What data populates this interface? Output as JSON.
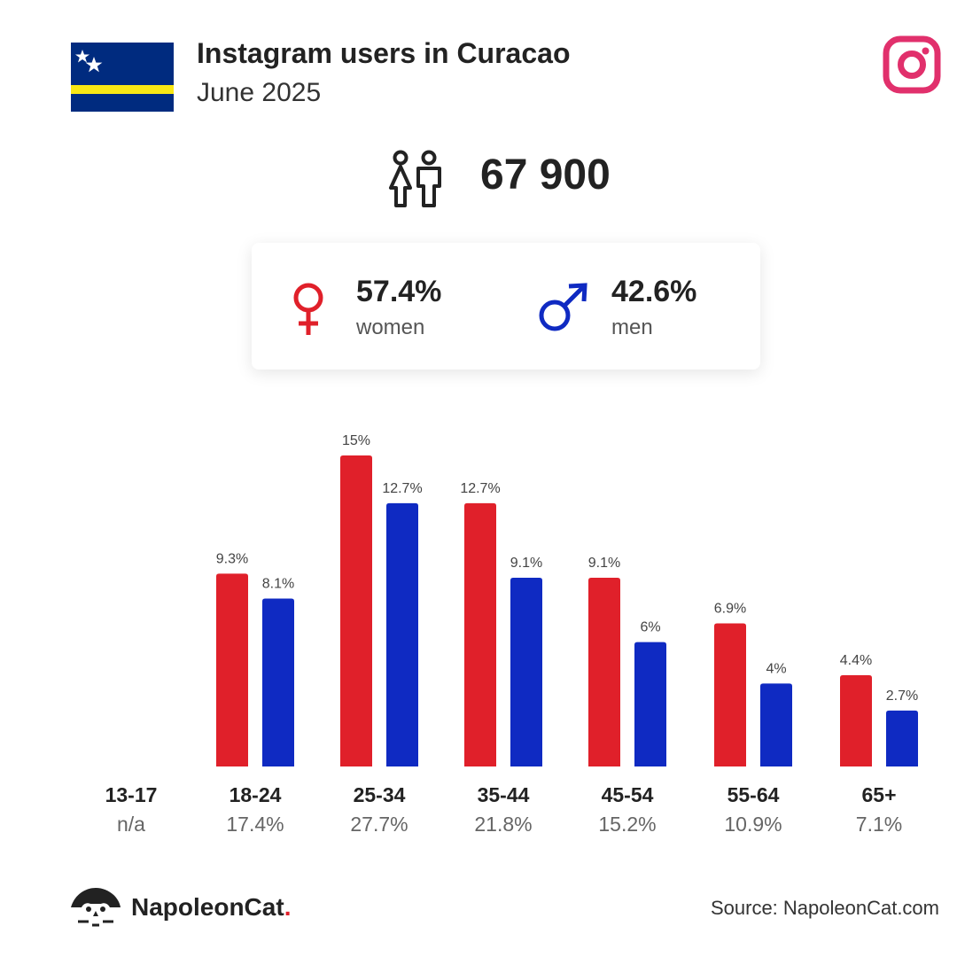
{
  "header": {
    "title": "Instagram users in Curacao",
    "subtitle": "June 2025",
    "flag_icon": "curacao-flag-icon",
    "platform_icon": "instagram-icon"
  },
  "total": {
    "value": "67 900",
    "icon": "people-icon"
  },
  "gender": {
    "women": {
      "pct": "57.4%",
      "label": "women",
      "icon": "female-symbol-icon",
      "color": "#e0202a"
    },
    "men": {
      "pct": "42.6%",
      "label": "men",
      "icon": "male-symbol-icon",
      "color": "#0f2ac2"
    }
  },
  "chart_data": {
    "type": "bar",
    "categories": [
      "13-17",
      "18-24",
      "25-34",
      "35-44",
      "45-54",
      "55-64",
      "65+"
    ],
    "category_totals": [
      "n/a",
      "17.4%",
      "27.7%",
      "21.8%",
      "15.2%",
      "10.9%",
      "7.1%"
    ],
    "series": [
      {
        "values": [
          null,
          9.3,
          15,
          12.7,
          9.1,
          6.9,
          4.4
        ],
        "labels": [
          "",
          "9.3%",
          "15%",
          "12.7%",
          "9.1%",
          "6.9%",
          "4.4%"
        ],
        "color": "#e0202a"
      },
      {
        "values": [
          null,
          8.1,
          12.7,
          9.1,
          6,
          4,
          2.7
        ],
        "labels": [
          "",
          "8.1%",
          "12.7%",
          "9.1%",
          "6%",
          "4%",
          "2.7%"
        ],
        "color": "#0f2ac2"
      }
    ],
    "ylim": [
      0,
      15
    ],
    "grid": false
  },
  "footer": {
    "brand": "NapoleonCat",
    "brand_dot": ".",
    "source": "Source: NapoleonCat.com",
    "logo_icon": "napoleoncat-logo-icon"
  }
}
